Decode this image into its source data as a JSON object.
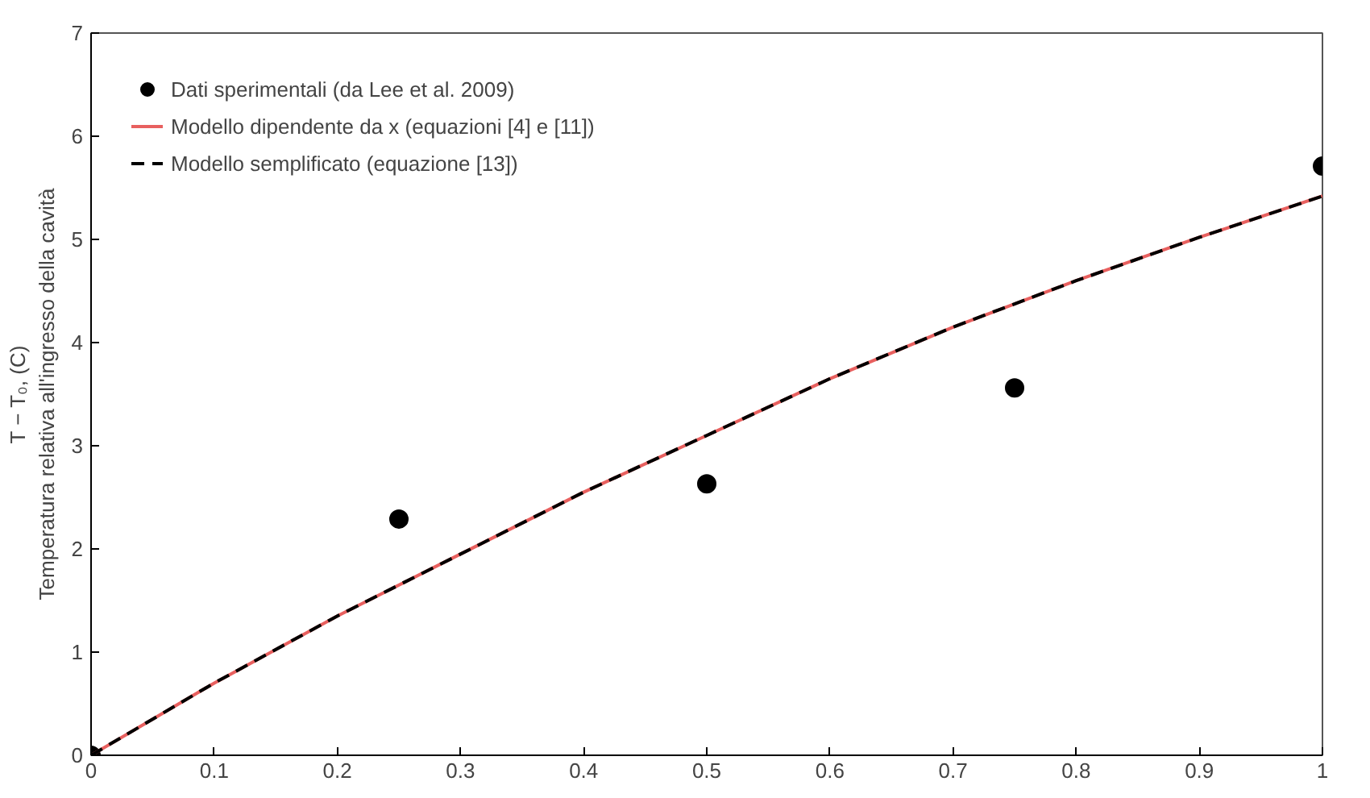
{
  "chart_data": {
    "type": "scatter",
    "ylabel": "T − T₀, (C)\nTemperatura relativa all'ingresso della cavità",
    "xlim": [
      0,
      1
    ],
    "xticks": [
      0,
      0.1,
      0.2,
      0.3,
      0.4,
      0.5,
      0.6,
      0.7,
      0.8,
      0.9,
      1
    ],
    "ylim": [
      0,
      7
    ],
    "yticks": [
      0,
      1,
      2,
      3,
      4,
      5,
      6,
      7
    ],
    "grid": false,
    "legend": "top left",
    "series": [
      {
        "name": "Dati sperimentali (da Lee et al. 2009)",
        "marker": "circle",
        "color": "#000000",
        "x": [
          0,
          0.25,
          0.5,
          0.75,
          1
        ],
        "values": [
          0,
          2.29,
          2.63,
          3.56,
          5.71
        ]
      },
      {
        "name": "Modello dipendente da x (equazioni [4] e [11])",
        "type": "line",
        "color": "#e8605f",
        "line_style": "solid",
        "x": [
          0,
          0.1,
          0.2,
          0.3,
          0.4,
          0.5,
          0.6,
          0.7,
          0.8,
          0.9,
          1
        ],
        "values": [
          0,
          0.7,
          1.35,
          1.95,
          2.55,
          3.1,
          3.65,
          4.15,
          4.6,
          5.02,
          5.42
        ]
      },
      {
        "name": "Modello semplificato (equazione [13])",
        "type": "line",
        "color": "#000000",
        "line_style": "dashed",
        "x": [
          0,
          0.1,
          0.2,
          0.3,
          0.4,
          0.5,
          0.6,
          0.7,
          0.8,
          0.9,
          1
        ],
        "values": [
          0,
          0.7,
          1.35,
          1.95,
          2.55,
          3.1,
          3.65,
          4.15,
          4.6,
          5.02,
          5.42
        ]
      }
    ]
  }
}
